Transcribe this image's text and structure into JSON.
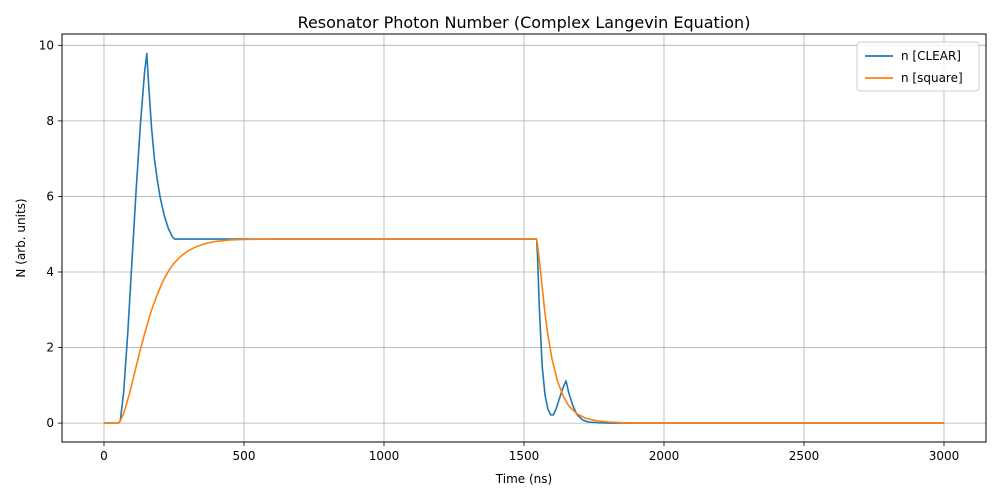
{
  "chart_data": {
    "type": "line",
    "title": "Resonator Photon Number (Complex Langevin Equation)",
    "xlabel": "Time (ns)",
    "ylabel": "N (arb. units)",
    "xlim": [
      -150,
      3150
    ],
    "ylim": [
      -0.5,
      10.3
    ],
    "xticks": [
      0,
      500,
      1000,
      1500,
      2000,
      2500,
      3000
    ],
    "yticks": [
      0,
      2,
      4,
      6,
      8,
      10
    ],
    "grid": true,
    "legend_position": "top-right",
    "series": [
      {
        "name": "n [CLEAR]",
        "color": "#1f77b4",
        "x": [
          0,
          50,
          58,
          70,
          85,
          100,
          115,
          130,
          145,
          153,
          160,
          170,
          180,
          190,
          200,
          215,
          230,
          245,
          253,
          260,
          300,
          500,
          1000,
          1545,
          1548,
          1555,
          1565,
          1575,
          1585,
          1595,
          1605,
          1615,
          1625,
          1640,
          1650,
          1660,
          1675,
          1690,
          1710,
          1730,
          1760,
          1800,
          1900,
          2000,
          3000
        ],
        "y": [
          0,
          0,
          0.05,
          0.8,
          2.4,
          4.3,
          6.2,
          7.9,
          9.3,
          9.78,
          8.9,
          7.8,
          7.0,
          6.45,
          6.0,
          5.5,
          5.15,
          4.92,
          4.87,
          4.87,
          4.87,
          4.87,
          4.87,
          4.87,
          4.5,
          3.0,
          1.5,
          0.75,
          0.38,
          0.22,
          0.22,
          0.38,
          0.62,
          0.95,
          1.12,
          0.8,
          0.45,
          0.22,
          0.08,
          0.03,
          0.01,
          0,
          0,
          0,
          0
        ]
      },
      {
        "name": "n [square]",
        "color": "#ff7f0e",
        "x": [
          0,
          50,
          55,
          70,
          90,
          110,
          130,
          150,
          170,
          190,
          210,
          230,
          250,
          275,
          300,
          330,
          360,
          400,
          450,
          500,
          600,
          800,
          1000,
          1200,
          1545,
          1548,
          1555,
          1565,
          1575,
          1585,
          1600,
          1620,
          1640,
          1660,
          1690,
          1720,
          1760,
          1800,
          1850,
          1900,
          2000,
          2500,
          3000
        ],
        "y": [
          0,
          0,
          0.01,
          0.25,
          0.75,
          1.35,
          1.95,
          2.5,
          3.0,
          3.4,
          3.75,
          4.02,
          4.23,
          4.42,
          4.56,
          4.67,
          4.75,
          4.81,
          4.85,
          4.86,
          4.87,
          4.87,
          4.87,
          4.87,
          4.87,
          4.75,
          4.3,
          3.6,
          2.9,
          2.35,
          1.7,
          1.1,
          0.72,
          0.45,
          0.24,
          0.13,
          0.06,
          0.03,
          0.01,
          0.005,
          0,
          0,
          0
        ]
      }
    ]
  }
}
